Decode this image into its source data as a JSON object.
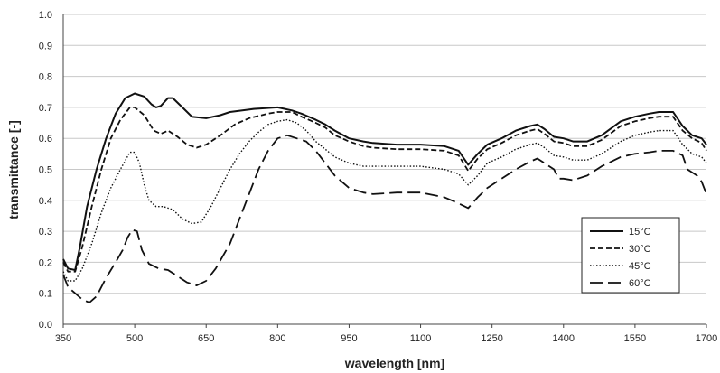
{
  "chart_data": {
    "type": "line",
    "xlabel": "wavelength [nm]",
    "ylabel": "transmittance [-]",
    "xlim": [
      350,
      1700
    ],
    "ylim": [
      0,
      1
    ],
    "xticks": [
      350,
      500,
      650,
      800,
      950,
      1100,
      1250,
      1400,
      1550,
      1700
    ],
    "yticks": [
      "0.0",
      "0.1",
      "0.2",
      "0.3",
      "0.4",
      "0.5",
      "0.6",
      "0.7",
      "0.8",
      "0.9",
      "1.0"
    ],
    "grid": "horizontal",
    "legend_position": "bottom-right",
    "series": [
      {
        "name": "15°C",
        "dash": "solid",
        "points": [
          [
            350,
            0.21
          ],
          [
            360,
            0.18
          ],
          [
            375,
            0.175
          ],
          [
            385,
            0.25
          ],
          [
            400,
            0.38
          ],
          [
            420,
            0.5
          ],
          [
            440,
            0.6
          ],
          [
            460,
            0.68
          ],
          [
            480,
            0.73
          ],
          [
            500,
            0.745
          ],
          [
            520,
            0.735
          ],
          [
            535,
            0.71
          ],
          [
            545,
            0.7
          ],
          [
            555,
            0.705
          ],
          [
            570,
            0.73
          ],
          [
            580,
            0.73
          ],
          [
            600,
            0.7
          ],
          [
            620,
            0.67
          ],
          [
            650,
            0.665
          ],
          [
            680,
            0.675
          ],
          [
            700,
            0.685
          ],
          [
            750,
            0.695
          ],
          [
            800,
            0.7
          ],
          [
            830,
            0.69
          ],
          [
            850,
            0.68
          ],
          [
            880,
            0.66
          ],
          [
            900,
            0.645
          ],
          [
            920,
            0.625
          ],
          [
            950,
            0.6
          ],
          [
            980,
            0.59
          ],
          [
            1000,
            0.585
          ],
          [
            1050,
            0.58
          ],
          [
            1100,
            0.58
          ],
          [
            1150,
            0.575
          ],
          [
            1180,
            0.56
          ],
          [
            1200,
            0.515
          ],
          [
            1220,
            0.55
          ],
          [
            1240,
            0.58
          ],
          [
            1270,
            0.6
          ],
          [
            1300,
            0.625
          ],
          [
            1330,
            0.64
          ],
          [
            1345,
            0.645
          ],
          [
            1360,
            0.63
          ],
          [
            1380,
            0.605
          ],
          [
            1400,
            0.6
          ],
          [
            1420,
            0.59
          ],
          [
            1450,
            0.59
          ],
          [
            1480,
            0.61
          ],
          [
            1520,
            0.655
          ],
          [
            1550,
            0.67
          ],
          [
            1580,
            0.68
          ],
          [
            1600,
            0.685
          ],
          [
            1630,
            0.685
          ],
          [
            1650,
            0.64
          ],
          [
            1670,
            0.61
          ],
          [
            1690,
            0.6
          ],
          [
            1700,
            0.58
          ]
        ]
      },
      {
        "name": "30°C",
        "dash": "short-dash",
        "points": [
          [
            350,
            0.2
          ],
          [
            360,
            0.17
          ],
          [
            375,
            0.17
          ],
          [
            390,
            0.25
          ],
          [
            410,
            0.38
          ],
          [
            430,
            0.5
          ],
          [
            450,
            0.6
          ],
          [
            470,
            0.66
          ],
          [
            490,
            0.7
          ],
          [
            500,
            0.7
          ],
          [
            520,
            0.675
          ],
          [
            540,
            0.625
          ],
          [
            555,
            0.615
          ],
          [
            570,
            0.625
          ],
          [
            590,
            0.605
          ],
          [
            610,
            0.58
          ],
          [
            630,
            0.57
          ],
          [
            650,
            0.58
          ],
          [
            680,
            0.61
          ],
          [
            710,
            0.645
          ],
          [
            740,
            0.665
          ],
          [
            780,
            0.68
          ],
          [
            800,
            0.685
          ],
          [
            830,
            0.685
          ],
          [
            850,
            0.67
          ],
          [
            880,
            0.65
          ],
          [
            900,
            0.635
          ],
          [
            920,
            0.61
          ],
          [
            950,
            0.59
          ],
          [
            980,
            0.575
          ],
          [
            1000,
            0.57
          ],
          [
            1050,
            0.565
          ],
          [
            1100,
            0.565
          ],
          [
            1150,
            0.56
          ],
          [
            1180,
            0.545
          ],
          [
            1200,
            0.495
          ],
          [
            1220,
            0.535
          ],
          [
            1240,
            0.565
          ],
          [
            1270,
            0.585
          ],
          [
            1300,
            0.61
          ],
          [
            1330,
            0.625
          ],
          [
            1345,
            0.63
          ],
          [
            1360,
            0.615
          ],
          [
            1380,
            0.59
          ],
          [
            1400,
            0.585
          ],
          [
            1420,
            0.575
          ],
          [
            1450,
            0.575
          ],
          [
            1480,
            0.595
          ],
          [
            1520,
            0.64
          ],
          [
            1550,
            0.655
          ],
          [
            1580,
            0.665
          ],
          [
            1600,
            0.67
          ],
          [
            1630,
            0.67
          ],
          [
            1650,
            0.625
          ],
          [
            1670,
            0.6
          ],
          [
            1690,
            0.585
          ],
          [
            1700,
            0.56
          ]
        ]
      },
      {
        "name": "45°C",
        "dash": "dotted",
        "points": [
          [
            350,
            0.17
          ],
          [
            360,
            0.14
          ],
          [
            375,
            0.14
          ],
          [
            390,
            0.18
          ],
          [
            410,
            0.26
          ],
          [
            430,
            0.36
          ],
          [
            450,
            0.44
          ],
          [
            470,
            0.5
          ],
          [
            490,
            0.555
          ],
          [
            500,
            0.555
          ],
          [
            510,
            0.52
          ],
          [
            520,
            0.45
          ],
          [
            530,
            0.4
          ],
          [
            545,
            0.38
          ],
          [
            560,
            0.38
          ],
          [
            580,
            0.37
          ],
          [
            600,
            0.34
          ],
          [
            620,
            0.325
          ],
          [
            640,
            0.33
          ],
          [
            660,
            0.38
          ],
          [
            680,
            0.44
          ],
          [
            700,
            0.5
          ],
          [
            720,
            0.55
          ],
          [
            740,
            0.59
          ],
          [
            760,
            0.62
          ],
          [
            780,
            0.645
          ],
          [
            800,
            0.655
          ],
          [
            820,
            0.66
          ],
          [
            840,
            0.65
          ],
          [
            860,
            0.625
          ],
          [
            880,
            0.59
          ],
          [
            900,
            0.565
          ],
          [
            920,
            0.54
          ],
          [
            950,
            0.52
          ],
          [
            980,
            0.51
          ],
          [
            1000,
            0.51
          ],
          [
            1050,
            0.51
          ],
          [
            1100,
            0.51
          ],
          [
            1150,
            0.5
          ],
          [
            1180,
            0.485
          ],
          [
            1200,
            0.45
          ],
          [
            1220,
            0.48
          ],
          [
            1240,
            0.52
          ],
          [
            1270,
            0.54
          ],
          [
            1300,
            0.565
          ],
          [
            1330,
            0.58
          ],
          [
            1345,
            0.585
          ],
          [
            1360,
            0.57
          ],
          [
            1380,
            0.545
          ],
          [
            1400,
            0.54
          ],
          [
            1420,
            0.53
          ],
          [
            1450,
            0.53
          ],
          [
            1480,
            0.55
          ],
          [
            1520,
            0.59
          ],
          [
            1550,
            0.61
          ],
          [
            1580,
            0.62
          ],
          [
            1600,
            0.625
          ],
          [
            1630,
            0.625
          ],
          [
            1650,
            0.58
          ],
          [
            1670,
            0.55
          ],
          [
            1690,
            0.54
          ],
          [
            1700,
            0.52
          ]
        ]
      },
      {
        "name": "60°C",
        "dash": "long-dash",
        "points": [
          [
            350,
            0.16
          ],
          [
            360,
            0.12
          ],
          [
            375,
            0.1
          ],
          [
            390,
            0.08
          ],
          [
            405,
            0.07
          ],
          [
            420,
            0.09
          ],
          [
            440,
            0.15
          ],
          [
            460,
            0.2
          ],
          [
            475,
            0.24
          ],
          [
            485,
            0.28
          ],
          [
            495,
            0.305
          ],
          [
            505,
            0.3
          ],
          [
            515,
            0.24
          ],
          [
            530,
            0.195
          ],
          [
            550,
            0.18
          ],
          [
            570,
            0.175
          ],
          [
            590,
            0.155
          ],
          [
            610,
            0.135
          ],
          [
            630,
            0.125
          ],
          [
            650,
            0.14
          ],
          [
            670,
            0.18
          ],
          [
            700,
            0.26
          ],
          [
            720,
            0.34
          ],
          [
            740,
            0.42
          ],
          [
            760,
            0.5
          ],
          [
            780,
            0.56
          ],
          [
            800,
            0.6
          ],
          [
            820,
            0.61
          ],
          [
            840,
            0.6
          ],
          [
            860,
            0.59
          ],
          [
            880,
            0.56
          ],
          [
            900,
            0.52
          ],
          [
            920,
            0.48
          ],
          [
            950,
            0.44
          ],
          [
            980,
            0.425
          ],
          [
            1000,
            0.42
          ],
          [
            1050,
            0.425
          ],
          [
            1100,
            0.425
          ],
          [
            1150,
            0.41
          ],
          [
            1180,
            0.39
          ],
          [
            1200,
            0.375
          ],
          [
            1220,
            0.41
          ],
          [
            1240,
            0.44
          ],
          [
            1270,
            0.47
          ],
          [
            1300,
            0.5
          ],
          [
            1330,
            0.525
          ],
          [
            1345,
            0.535
          ],
          [
            1360,
            0.52
          ],
          [
            1380,
            0.5
          ],
          [
            1390,
            0.47
          ],
          [
            1400,
            0.47
          ],
          [
            1420,
            0.465
          ],
          [
            1450,
            0.48
          ],
          [
            1480,
            0.51
          ],
          [
            1520,
            0.54
          ],
          [
            1550,
            0.55
          ],
          [
            1580,
            0.555
          ],
          [
            1600,
            0.56
          ],
          [
            1630,
            0.56
          ],
          [
            1650,
            0.545
          ],
          [
            1660,
            0.5
          ],
          [
            1680,
            0.48
          ],
          [
            1690,
            0.46
          ],
          [
            1700,
            0.42
          ]
        ]
      }
    ]
  }
}
